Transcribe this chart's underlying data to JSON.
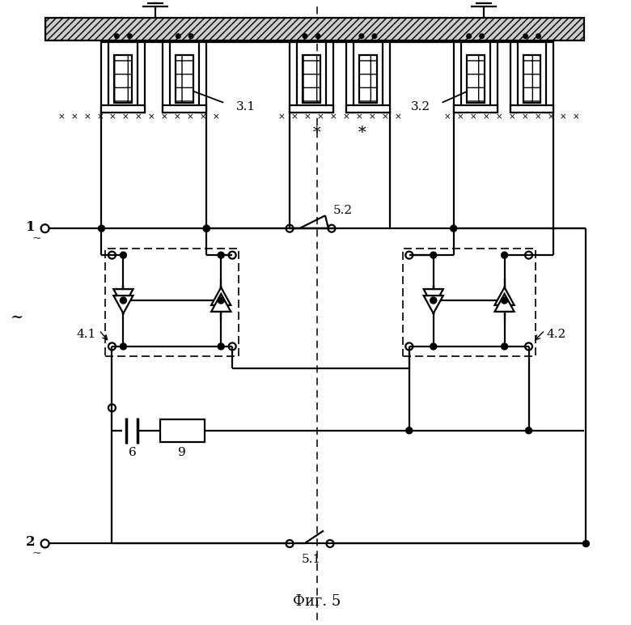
{
  "title": "Фиг. 5",
  "background_color": "#ffffff",
  "line_color": "#000000",
  "figsize": [
    7.8,
    7.72
  ],
  "dpi": 100,
  "labels": {
    "t1": "1",
    "t2": "2",
    "l31": "3.1",
    "l32": "3.2",
    "l41": "4.1",
    "l42": "4.2",
    "l51": "5.1",
    "l52": "5.2",
    "l6": "6",
    "l9": "9",
    "ac": "~",
    "star": "*"
  }
}
